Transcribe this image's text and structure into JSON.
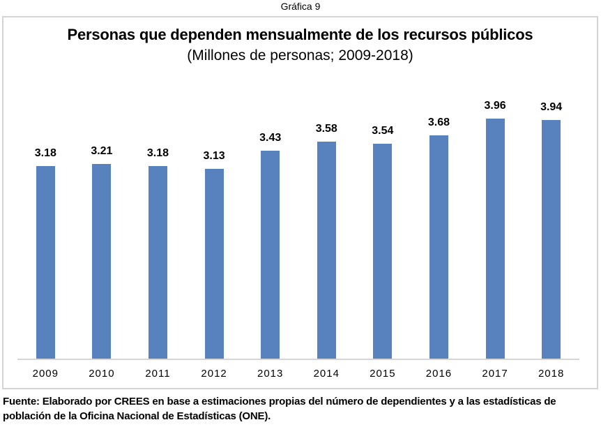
{
  "figure": {
    "caption": "Gráfica 9"
  },
  "chart_data": {
    "type": "bar",
    "title": "Personas que dependen mensualmente de los recursos públicos",
    "subtitle": "(Millones de personas; 2009-2018)",
    "categories": [
      "2009",
      "2010",
      "2011",
      "2012",
      "2013",
      "2014",
      "2015",
      "2016",
      "2017",
      "2018"
    ],
    "values": [
      3.18,
      3.21,
      3.18,
      3.13,
      3.43,
      3.58,
      3.54,
      3.68,
      3.96,
      3.94
    ],
    "labels": [
      "3.18",
      "3.21",
      "3.18",
      "3.13",
      "3.43",
      "3.58",
      "3.54",
      "3.68",
      "3.96",
      "3.94"
    ],
    "ylim": [
      0,
      4.5
    ],
    "grid": false,
    "legend": false,
    "data_labels": true,
    "bar_color": "#5882be",
    "axis_line_color": "#d6d6d6"
  },
  "source": {
    "text": "Fuente: Elaborado por CREES en base a estimaciones propias del número de dependientes y a las estadísticas de población de la Oficina Nacional de Estadísticas (ONE)."
  }
}
